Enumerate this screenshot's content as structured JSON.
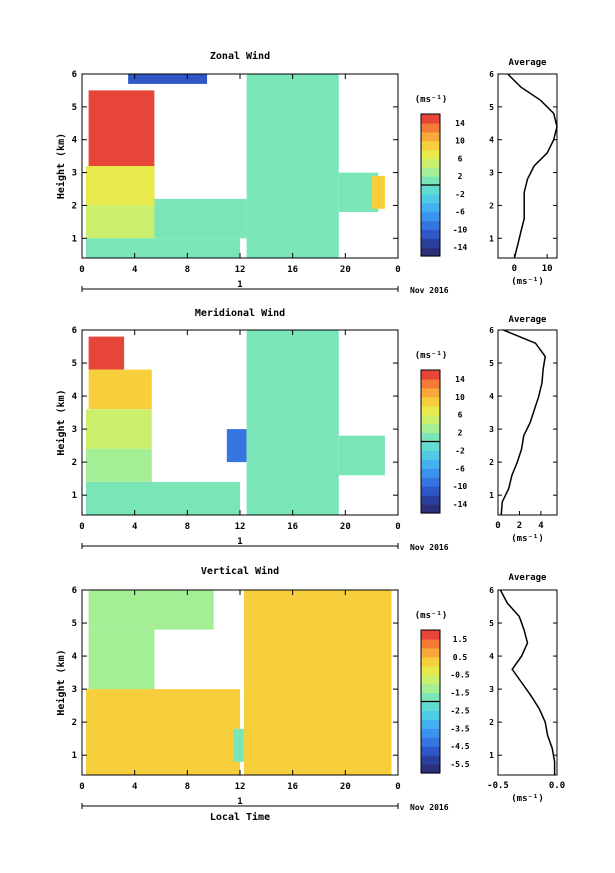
{
  "chart_data": [
    {
      "type": "heatmap",
      "title": "Zonal Wind",
      "xlabel": "",
      "ylabel": "Height (km)",
      "x_ticks": [
        "0",
        "4",
        "8",
        "12",
        "16",
        "20",
        "0"
      ],
      "y_ticks": [
        "1",
        "2",
        "3",
        "4",
        "5",
        "6"
      ],
      "xlim": [
        0,
        24
      ],
      "ylim": [
        0.4,
        6.0
      ],
      "day_label": "1",
      "month_label": "Nov 2016",
      "colorbar_unit": "(ms⁻¹)",
      "colorbar_ticks": [
        "14",
        "10",
        "6",
        "2",
        "-2",
        "-6",
        "-10",
        "-14"
      ],
      "colorbar_range": [
        -16,
        16
      ],
      "regions": [
        {
          "x0": 0.5,
          "x1": 5.5,
          "y0": 3.2,
          "y1": 5.5,
          "value": 15
        },
        {
          "x0": 3.5,
          "x1": 9.5,
          "y0": 5.7,
          "y1": 6.0,
          "value": -12
        },
        {
          "x0": 0.3,
          "x1": 5.5,
          "y0": 2.0,
          "y1": 3.2,
          "value": 6
        },
        {
          "x0": 0.3,
          "x1": 5.5,
          "y0": 1.0,
          "y1": 2.0,
          "value": 4
        },
        {
          "x0": 0.3,
          "x1": 12.0,
          "y0": 0.4,
          "y1": 1.0,
          "value": 1
        },
        {
          "x0": 5.5,
          "x1": 12.5,
          "y0": 1.0,
          "y1": 2.2,
          "value": 1
        },
        {
          "x0": 12.5,
          "x1": 19.5,
          "y0": 0.4,
          "y1": 6.0,
          "value": 0
        },
        {
          "x0": 19.5,
          "x1": 22.5,
          "y0": 1.8,
          "y1": 3.0,
          "value": 0
        },
        {
          "x0": 22.0,
          "x1": 23.0,
          "y0": 1.9,
          "y1": 2.9,
          "value": 9
        }
      ],
      "profile": {
        "title": "Average",
        "xlabel": "(ms⁻¹)",
        "x_ticks": [
          "0",
          "10"
        ],
        "xlim": [
          -5,
          13
        ],
        "heights": [
          0.4,
          0.8,
          1.2,
          1.6,
          2.0,
          2.4,
          2.8,
          3.2,
          3.6,
          4.0,
          4.4,
          4.8,
          5.2,
          5.6,
          6.0
        ],
        "values": [
          0,
          1,
          2,
          3,
          3,
          3,
          4,
          6,
          10,
          12,
          13,
          12,
          8,
          2,
          -2
        ]
      }
    },
    {
      "type": "heatmap",
      "title": "Meridional Wind",
      "xlabel": "",
      "ylabel": "Height (km)",
      "x_ticks": [
        "0",
        "4",
        "8",
        "12",
        "16",
        "20",
        "0"
      ],
      "y_ticks": [
        "1",
        "2",
        "3",
        "4",
        "5",
        "6"
      ],
      "xlim": [
        0,
        24
      ],
      "ylim": [
        0.4,
        6.0
      ],
      "day_label": "1",
      "month_label": "Nov 2016",
      "colorbar_unit": "(ms⁻¹)",
      "colorbar_ticks": [
        "14",
        "10",
        "6",
        "2",
        "-2",
        "-6",
        "-10",
        "-14"
      ],
      "colorbar_range": [
        -16,
        16
      ],
      "regions": [
        {
          "x0": 0.5,
          "x1": 3.2,
          "y0": 4.8,
          "y1": 5.8,
          "value": 14
        },
        {
          "x0": 0.5,
          "x1": 5.3,
          "y0": 3.6,
          "y1": 4.8,
          "value": 9
        },
        {
          "x0": 0.3,
          "x1": 5.3,
          "y0": 2.4,
          "y1": 3.6,
          "value": 5
        },
        {
          "x0": 0.3,
          "x1": 5.3,
          "y0": 1.4,
          "y1": 2.4,
          "value": 2
        },
        {
          "x0": 0.3,
          "x1": 12.0,
          "y0": 0.4,
          "y1": 1.4,
          "value": 0
        },
        {
          "x0": 11.0,
          "x1": 12.5,
          "y0": 2.0,
          "y1": 3.0,
          "value": -9
        },
        {
          "x0": 12.5,
          "x1": 19.5,
          "y0": 0.4,
          "y1": 6.0,
          "value": 0
        },
        {
          "x0": 19.5,
          "x1": 23.0,
          "y0": 1.6,
          "y1": 2.8,
          "value": 0
        }
      ],
      "profile": {
        "title": "Average",
        "xlabel": "(ms⁻¹)",
        "x_ticks": [
          "0",
          "2",
          "4"
        ],
        "xlim": [
          0,
          5.5
        ],
        "heights": [
          0.4,
          0.8,
          1.2,
          1.6,
          2.0,
          2.4,
          2.8,
          3.2,
          3.6,
          4.0,
          4.4,
          4.8,
          5.2,
          5.6,
          6.0
        ],
        "values": [
          0.3,
          0.4,
          1.0,
          1.3,
          1.8,
          2.2,
          2.4,
          3.0,
          3.4,
          3.8,
          4.1,
          4.2,
          4.4,
          3.5,
          0.5
        ]
      }
    },
    {
      "type": "heatmap",
      "title": "Vertical Wind",
      "xlabel": "Local Time",
      "ylabel": "Height (km)",
      "x_ticks": [
        "0",
        "4",
        "8",
        "12",
        "16",
        "20",
        "0"
      ],
      "y_ticks": [
        "1",
        "2",
        "3",
        "4",
        "5",
        "6"
      ],
      "xlim": [
        0,
        24
      ],
      "ylim": [
        0.4,
        6.0
      ],
      "day_label": "1",
      "month_label": "Nov 2016",
      "colorbar_unit": "(ms⁻¹)",
      "colorbar_ticks": [
        "1.5",
        "0.5",
        "-0.5",
        "-1.5",
        "-2.5",
        "-3.5",
        "-4.5",
        "-5.5"
      ],
      "colorbar_range": [
        -6,
        2
      ],
      "regions": [
        {
          "x0": 0.5,
          "x1": 10.0,
          "y0": 4.8,
          "y1": 6.0,
          "value": -1.5
        },
        {
          "x0": 0.5,
          "x1": 5.5,
          "y0": 3.0,
          "y1": 4.8,
          "value": -1.2
        },
        {
          "x0": 0.3,
          "x1": 12.0,
          "y0": 0.4,
          "y1": 3.0,
          "value": 0.3
        },
        {
          "x0": 11.5,
          "x1": 12.3,
          "y0": 0.8,
          "y1": 1.8,
          "value": -2.0
        },
        {
          "x0": 12.3,
          "x1": 23.5,
          "y0": 0.4,
          "y1": 6.0,
          "value": 0.4
        }
      ],
      "profile": {
        "title": "Average",
        "xlabel": "(ms⁻¹)",
        "x_ticks": [
          "-0.5",
          "0.0"
        ],
        "xlim": [
          -0.5,
          0.0
        ],
        "heights": [
          0.4,
          0.8,
          1.2,
          1.6,
          2.0,
          2.4,
          2.8,
          3.2,
          3.6,
          4.0,
          4.4,
          4.8,
          5.2,
          5.6,
          6.0
        ],
        "values": [
          -0.02,
          -0.02,
          -0.04,
          -0.08,
          -0.1,
          -0.15,
          -0.22,
          -0.3,
          -0.38,
          -0.3,
          -0.25,
          -0.28,
          -0.32,
          -0.42,
          -0.48
        ]
      }
    }
  ]
}
